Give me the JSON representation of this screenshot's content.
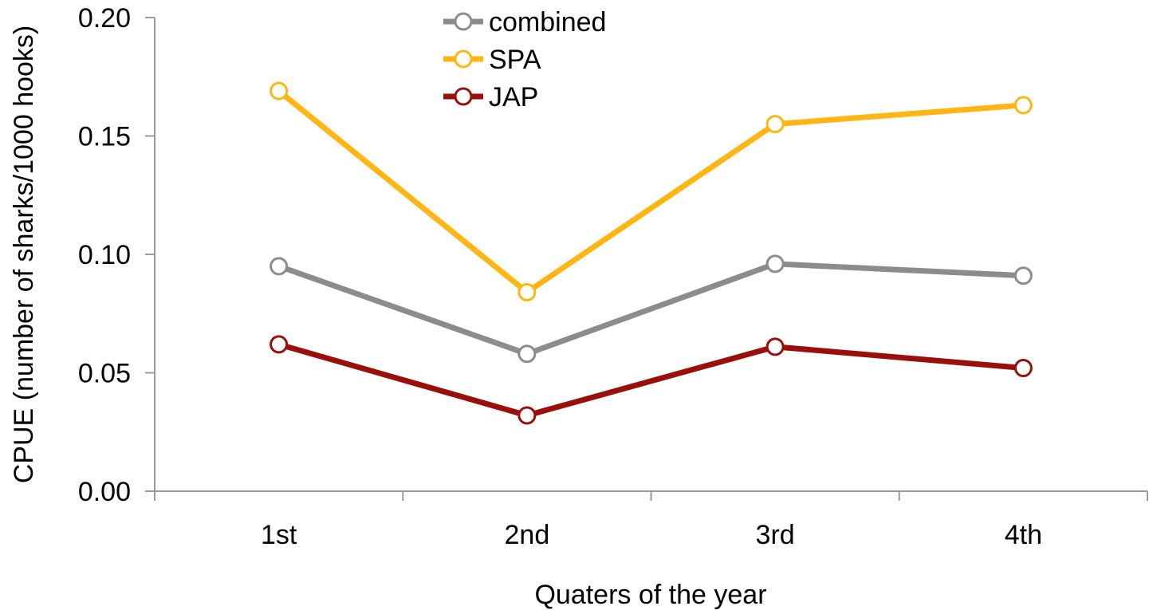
{
  "chart_data": {
    "type": "line",
    "title": "",
    "xlabel": "Quaters of the year",
    "ylabel": "CPUE (number of sharks/1000 hooks)",
    "categories": [
      "1st",
      "2nd",
      "3rd",
      "4th"
    ],
    "ylim": [
      0,
      0.2
    ],
    "yticks": [
      "0.00",
      "0.05",
      "0.10",
      "0.15",
      "0.20"
    ],
    "ytick_values": [
      0,
      0.05,
      0.1,
      0.15,
      0.2
    ],
    "grid": false,
    "legend_position": "top-center",
    "series": [
      {
        "name": "combined",
        "color": "#8c8c8c",
        "values": [
          0.095,
          0.058,
          0.096,
          0.091
        ]
      },
      {
        "name": "SPA",
        "color": "#ffb612",
        "values": [
          0.169,
          0.084,
          0.155,
          0.163
        ]
      },
      {
        "name": "JAP",
        "color": "#9b0f0a",
        "values": [
          0.062,
          0.032,
          0.061,
          0.052
        ]
      }
    ]
  }
}
